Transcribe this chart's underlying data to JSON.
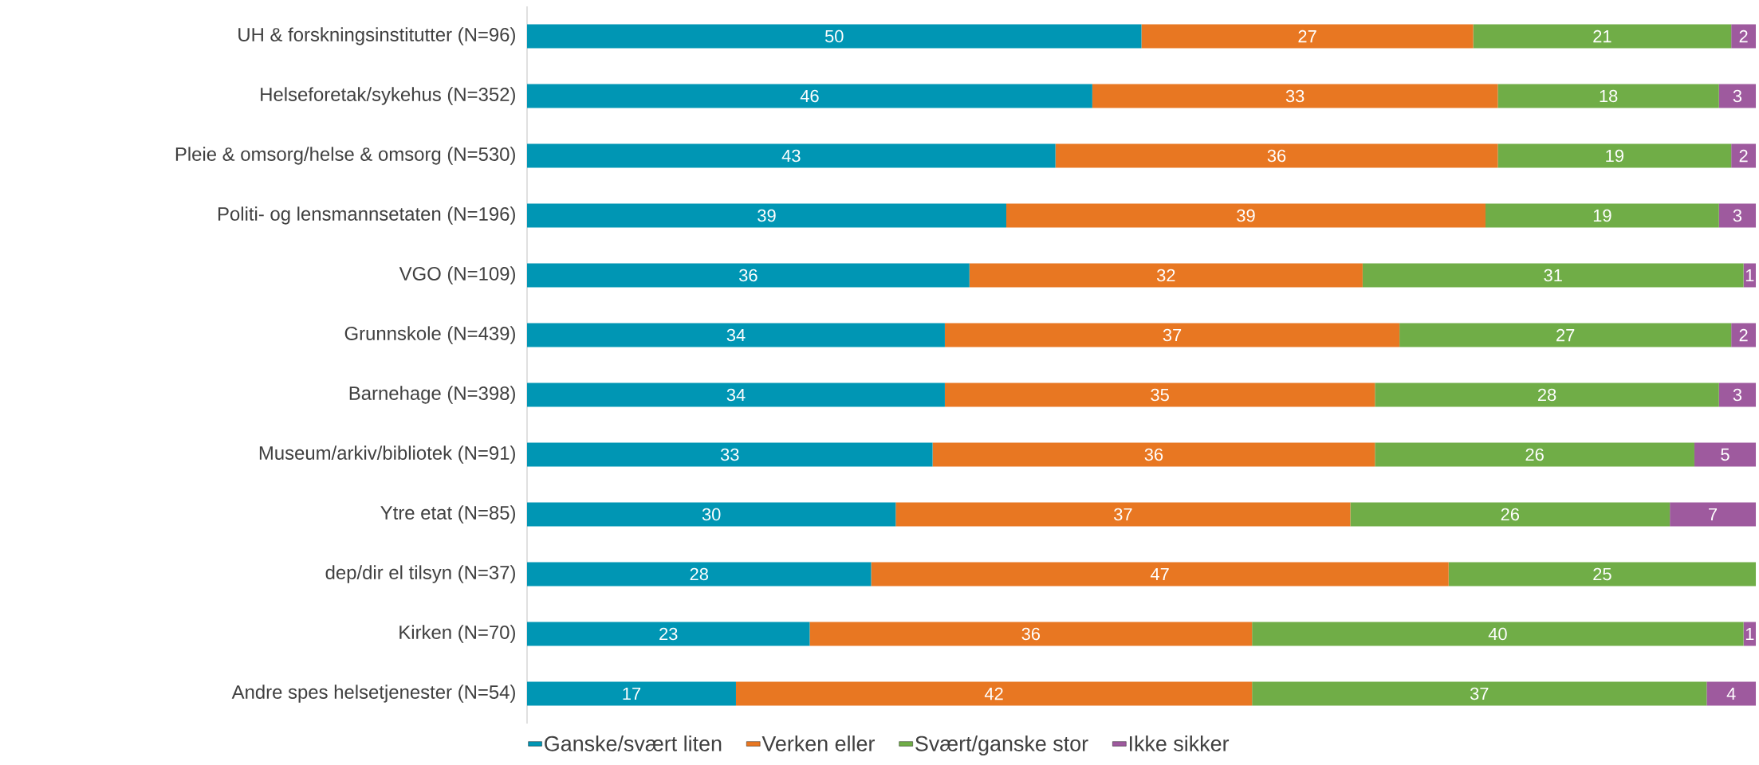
{
  "chart_data": {
    "type": "bar",
    "orientation": "horizontal",
    "stacked": true,
    "categories": [
      "UH & forskningsinstitutter (N=96)",
      "Helseforetak/sykehus (N=352)",
      "Pleie & omsorg/helse & omsorg (N=530)",
      "Politi- og lensmannsetaten (N=196)",
      "VGO (N=109)",
      "Grunnskole (N=439)",
      "Barnehage (N=398)",
      "Museum/arkiv/bibliotek (N=91)",
      "Ytre etat (N=85)",
      "dep/dir el tilsyn (N=37)",
      "Kirken (N=70)",
      "Andre spes helsetjenester (N=54)"
    ],
    "series": [
      {
        "name": "Ganske/svært liten",
        "color": "#0096b4",
        "values": [
          50,
          46,
          43,
          39,
          36,
          34,
          34,
          33,
          30,
          28,
          23,
          17
        ]
      },
      {
        "name": "Verken eller",
        "color": "#e87722",
        "values": [
          27,
          33,
          36,
          39,
          32,
          37,
          35,
          36,
          37,
          47,
          36,
          42
        ]
      },
      {
        "name": "Svært/ganske stor",
        "color": "#70ad47",
        "values": [
          21,
          18,
          19,
          19,
          31,
          27,
          28,
          26,
          26,
          25,
          40,
          37
        ]
      },
      {
        "name": "Ikke sikker",
        "color": "#9e5a9e",
        "values": [
          2,
          3,
          2,
          3,
          1,
          2,
          3,
          5,
          7,
          null,
          1,
          4
        ]
      }
    ],
    "data_labels": true,
    "legend": "bottom",
    "tick_labels": "y"
  }
}
